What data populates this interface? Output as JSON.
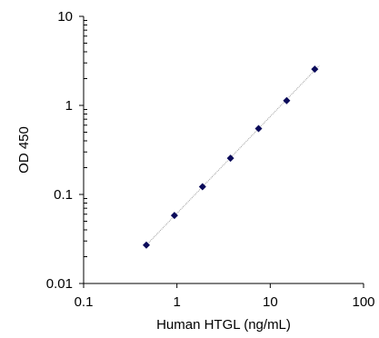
{
  "chart_data": {
    "type": "scatter",
    "title": "",
    "xlabel": "Human HTGL  (ng/mL)",
    "ylabel": "OD 450",
    "x_scale": "log",
    "y_scale": "log",
    "xlim": [
      0.1,
      100
    ],
    "ylim": [
      0.01,
      10
    ],
    "x_ticks": [
      "0.1",
      "1",
      "10",
      "100"
    ],
    "y_ticks": [
      "0.01",
      "0.1",
      "1",
      "10"
    ],
    "grid": false,
    "legend": "none",
    "points": [
      {
        "x": 0.47,
        "y": 0.027
      },
      {
        "x": 0.94,
        "y": 0.058
      },
      {
        "x": 1.88,
        "y": 0.122
      },
      {
        "x": 3.75,
        "y": 0.255
      },
      {
        "x": 7.5,
        "y": 0.55
      },
      {
        "x": 15,
        "y": 1.13
      },
      {
        "x": 30,
        "y": 2.55
      }
    ],
    "fit_line": {
      "style": "dotted",
      "color": "#a0a0a0"
    },
    "marker": {
      "shape": "diamond",
      "color": "#0a0a5a"
    }
  }
}
